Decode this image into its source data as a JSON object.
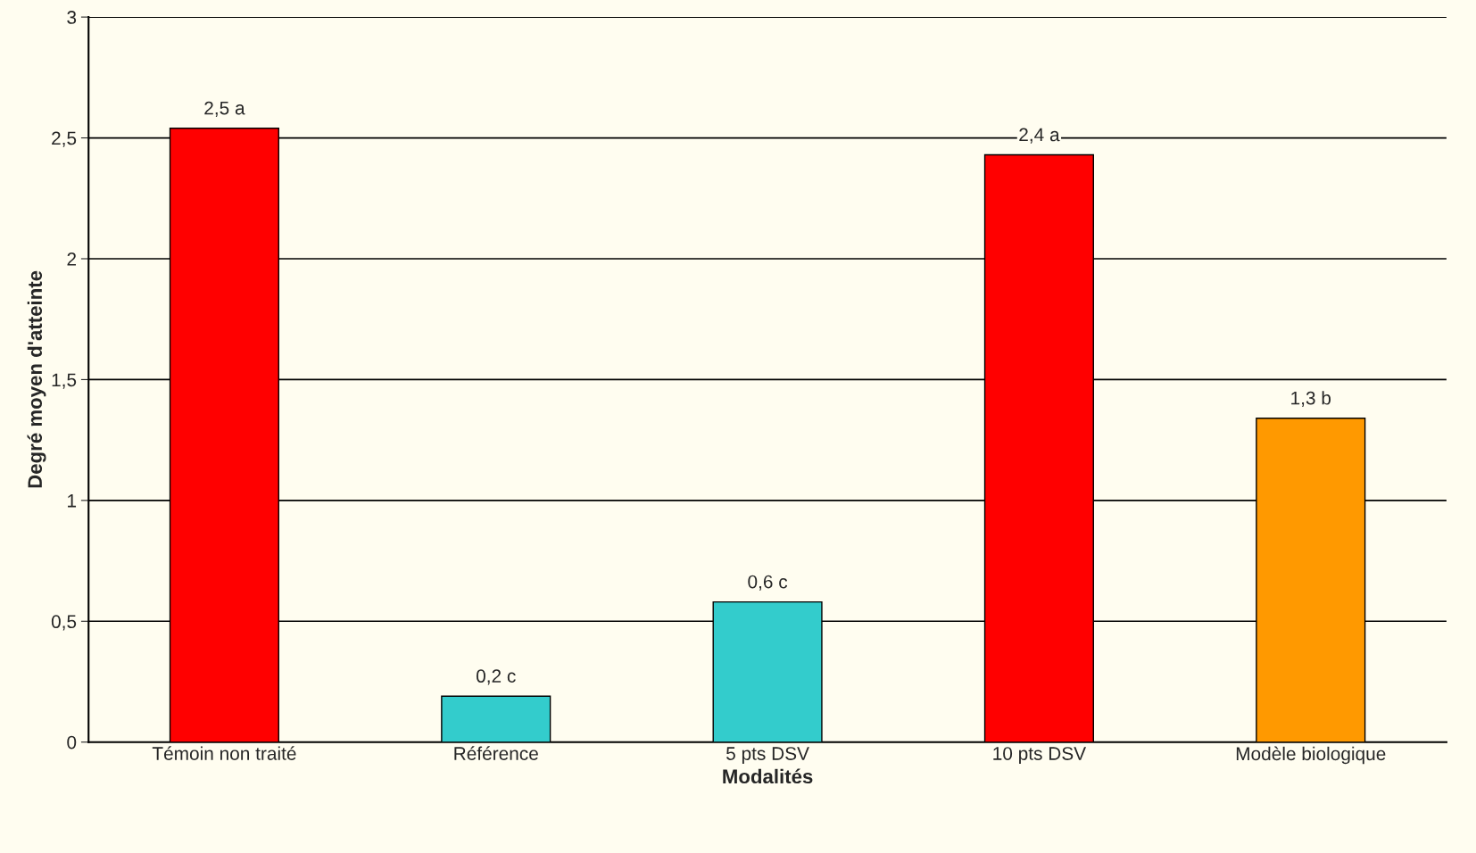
{
  "chart_data": {
    "type": "bar",
    "xlabel": "Modalités",
    "ylabel": "Degré moyen d'atteinte",
    "categories": [
      "Témoin non traité",
      "Référence",
      "5 pts DSV",
      "10 pts DSV",
      "Modèle biologique"
    ],
    "values": [
      2.54,
      0.19,
      0.58,
      2.43,
      1.34
    ],
    "colors": [
      "#ff0000",
      "#33cccc",
      "#33cccc",
      "#ff0000",
      "#ff9900"
    ],
    "value_labels": [
      "2,5 a",
      "0,2 c",
      "0,6 c",
      "2,4 a",
      "1,3 b"
    ],
    "ylim": [
      0,
      3
    ],
    "yticks": [
      0,
      {
        "value": 0.5,
        "label": "0,5"
      },
      1,
      {
        "value": 1.5,
        "label": "1,5"
      },
      2,
      {
        "value": 2.5,
        "label": "2,5"
      },
      3
    ],
    "grid": "y",
    "legend": false
  }
}
